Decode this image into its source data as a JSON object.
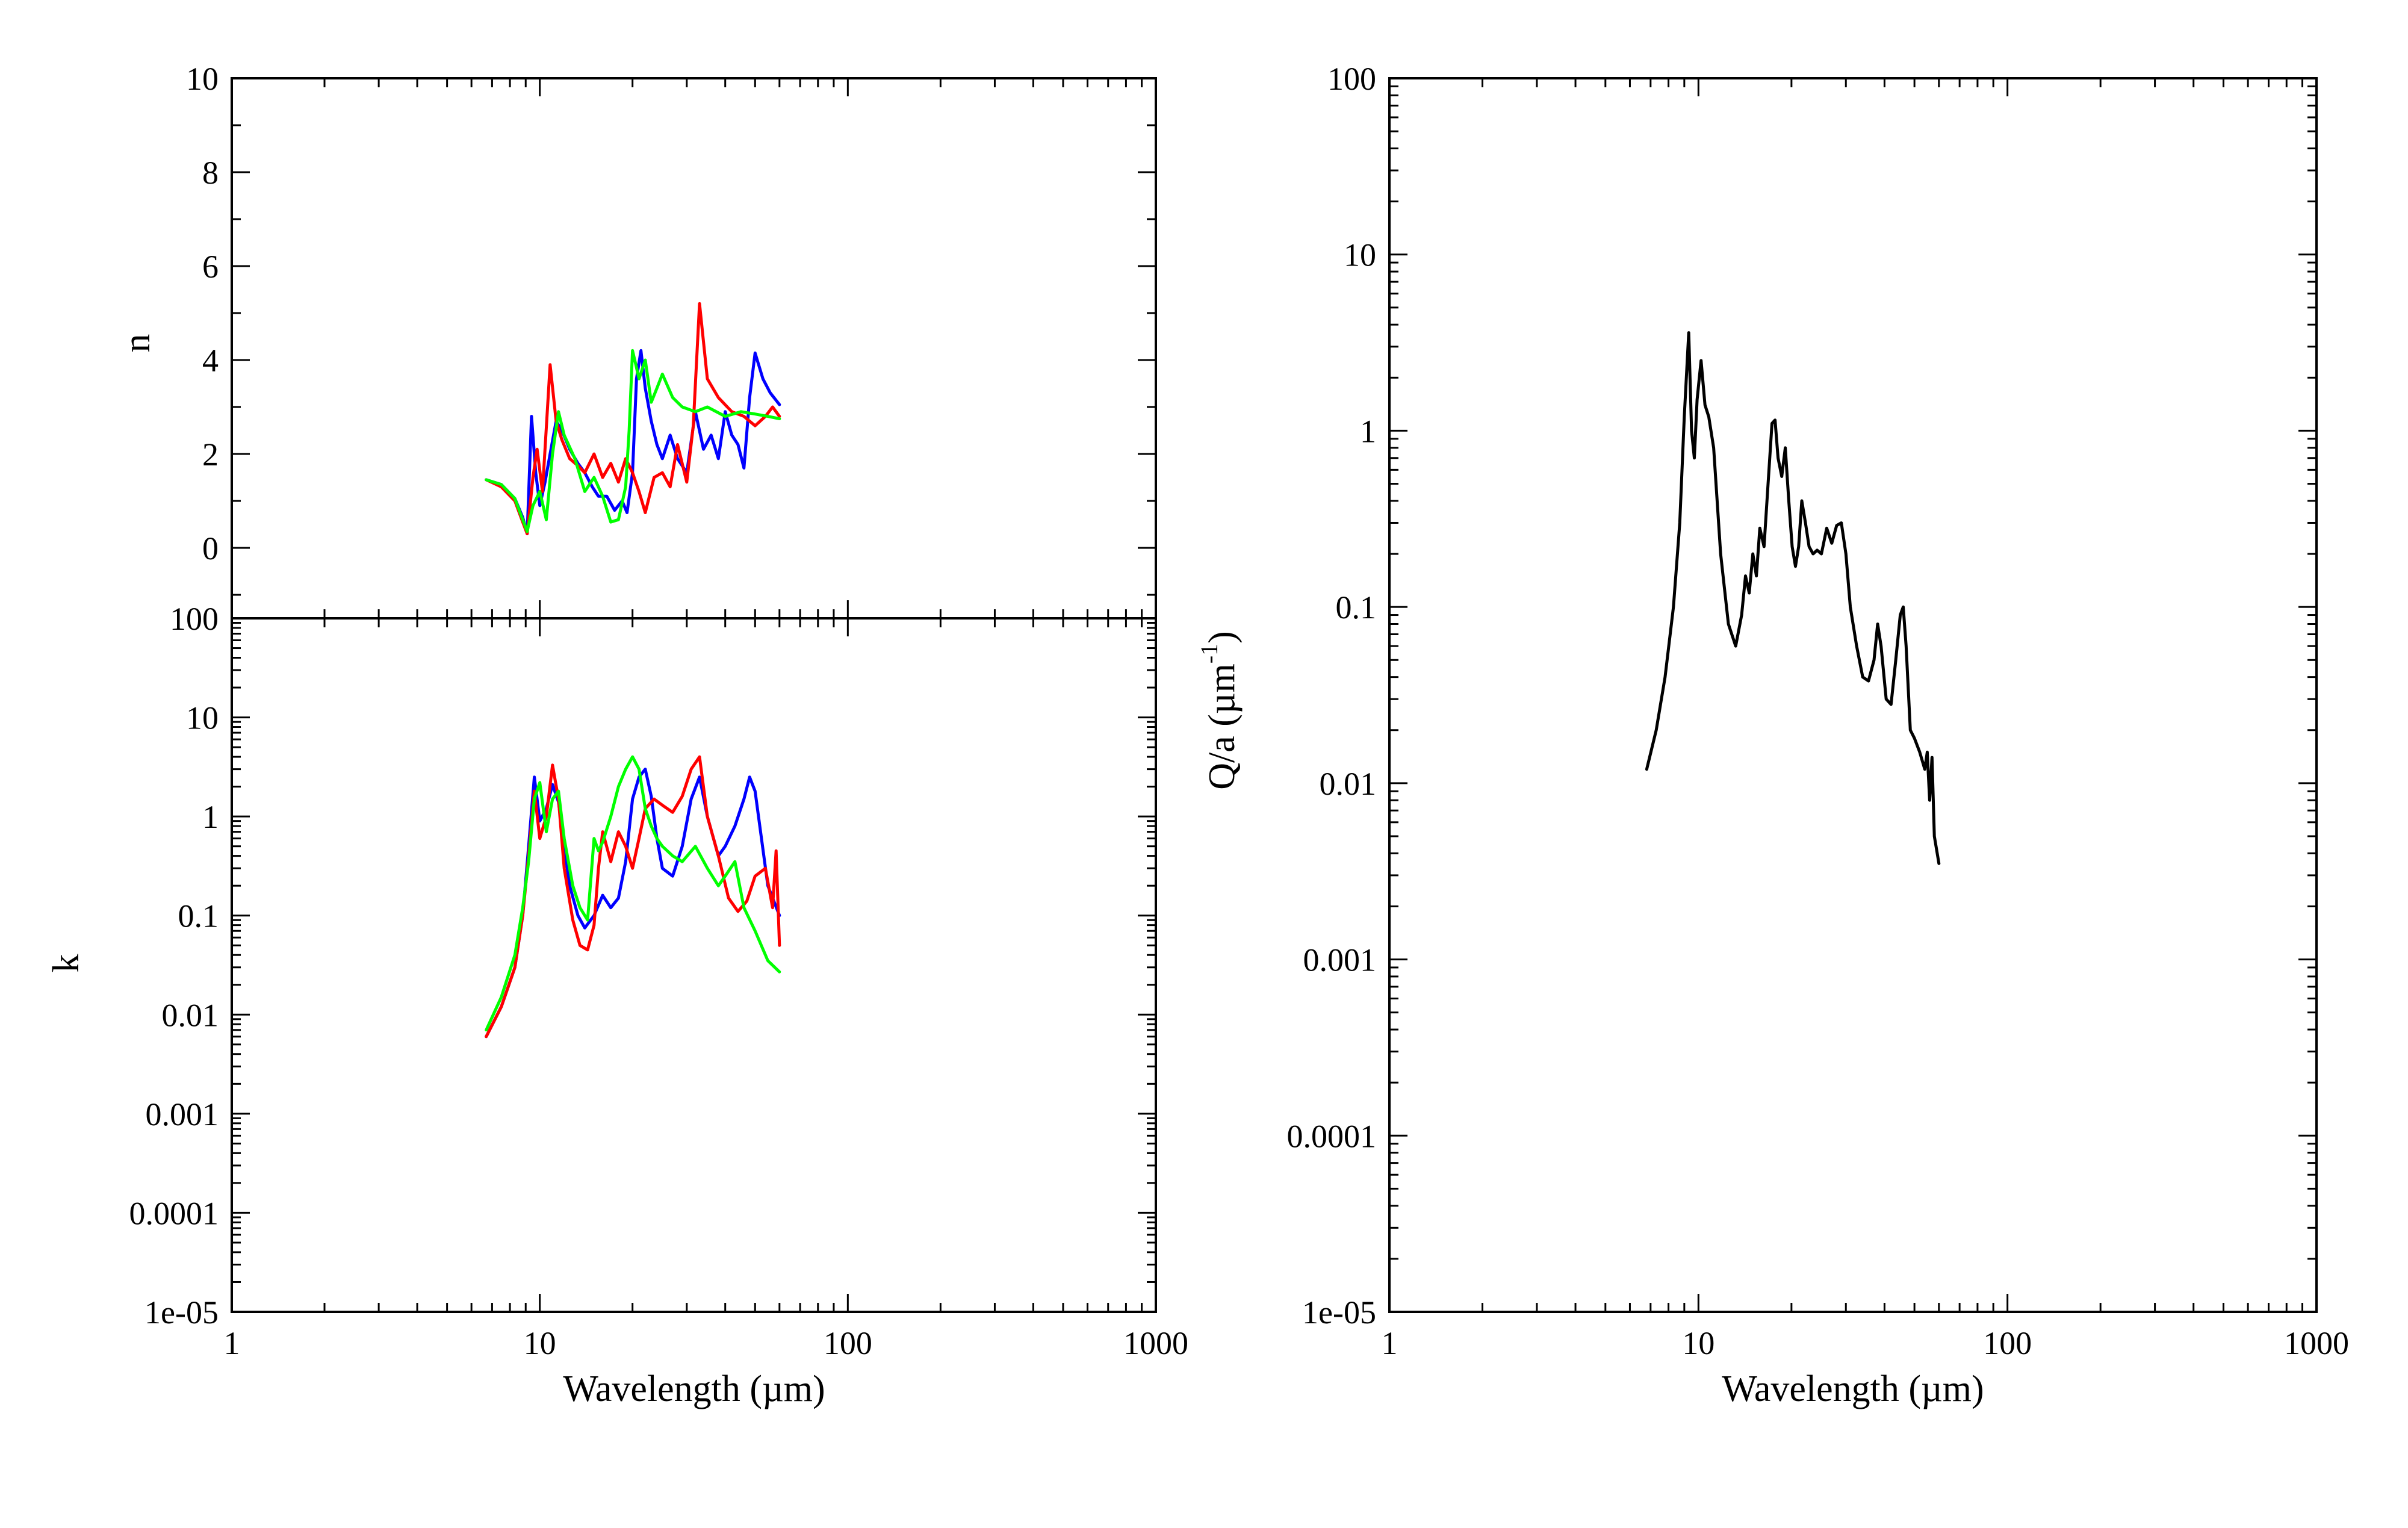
{
  "chart_data": [
    {
      "id": "n",
      "type": "line",
      "xscale": "log",
      "yscale": "linear",
      "xlim": [
        1,
        1000
      ],
      "ylim": [
        -1.5,
        10
      ],
      "ylabel": "n",
      "xlabel": "",
      "ytick_labels": [
        {
          "v": 0,
          "label": "0"
        },
        {
          "v": 2,
          "label": "2"
        },
        {
          "v": 4,
          "label": "4"
        },
        {
          "v": 6,
          "label": "6"
        },
        {
          "v": 8,
          "label": "8"
        },
        {
          "v": 10,
          "label": "10"
        }
      ],
      "xtick_labels": [],
      "series": [
        {
          "color": "#0000ff",
          "x": [
            6.7,
            7.5,
            8.3,
            8.8,
            9.1,
            9.4,
            9.7,
            10.0,
            10.4,
            10.8,
            11.3,
            11.8,
            12.5,
            13.3,
            14.0,
            14.8,
            15.5,
            16.5,
            17.5,
            18.5,
            19.2,
            20.0,
            20.6,
            21.3,
            22.0,
            23.0,
            24.0,
            25.0,
            26.5,
            28.0,
            30.0,
            32.0,
            34.0,
            36.0,
            38.0,
            40.0,
            42.0,
            44.0,
            46.0,
            48.0,
            50.0,
            53.0,
            56.0,
            60.0
          ],
          "y": [
            1.45,
            1.35,
            1.05,
            0.65,
            0.3,
            2.8,
            1.6,
            0.9,
            1.4,
            2.0,
            2.7,
            2.5,
            2.1,
            1.8,
            1.6,
            1.3,
            1.1,
            1.1,
            0.8,
            1.0,
            0.75,
            1.6,
            3.6,
            4.2,
            3.4,
            2.7,
            2.2,
            1.9,
            2.4,
            1.9,
            1.6,
            2.9,
            2.1,
            2.4,
            1.9,
            2.9,
            2.4,
            2.2,
            1.7,
            3.2,
            4.15,
            3.6,
            3.3,
            3.05
          ]
        },
        {
          "color": "#ff0000",
          "x": [
            6.7,
            7.5,
            8.3,
            8.8,
            9.1,
            9.5,
            9.8,
            10.2,
            10.8,
            11.3,
            11.8,
            12.5,
            13.3,
            14.0,
            15.0,
            16.0,
            17.0,
            18.0,
            19.0,
            20.0,
            21.0,
            22.0,
            23.5,
            25.0,
            26.5,
            28.0,
            30.0,
            31.5,
            33.0,
            35.0,
            38.0,
            42.0,
            46.0,
            50.0,
            54.0,
            57.0,
            60.0
          ],
          "y": [
            1.45,
            1.3,
            1.0,
            0.55,
            0.3,
            1.5,
            2.1,
            1.2,
            3.9,
            2.7,
            2.3,
            1.9,
            1.75,
            1.6,
            2.0,
            1.5,
            1.8,
            1.4,
            1.9,
            1.6,
            1.2,
            0.75,
            1.5,
            1.6,
            1.3,
            2.2,
            1.4,
            2.6,
            5.2,
            3.6,
            3.2,
            2.9,
            2.8,
            2.6,
            2.8,
            3.0,
            2.8
          ]
        },
        {
          "color": "#00ff00",
          "x": [
            6.7,
            7.5,
            8.3,
            8.8,
            9.1,
            9.5,
            10.0,
            10.5,
            11.0,
            11.5,
            12.0,
            13.0,
            14.0,
            15.0,
            16.0,
            17.0,
            18.0,
            19.0,
            19.5,
            20.0,
            20.5,
            21.0,
            22.0,
            23.0,
            24.0,
            25.0,
            27.0,
            29.0,
            32.0,
            35.0,
            40.0,
            45.0,
            50.0,
            55.0,
            60.0
          ],
          "y": [
            1.45,
            1.35,
            1.05,
            0.6,
            0.35,
            0.9,
            1.2,
            0.6,
            2.0,
            2.9,
            2.4,
            1.9,
            1.2,
            1.5,
            1.1,
            0.55,
            0.6,
            1.3,
            2.5,
            4.2,
            3.9,
            3.6,
            4.0,
            3.1,
            3.4,
            3.7,
            3.2,
            3.0,
            2.9,
            3.0,
            2.8,
            2.9,
            2.85,
            2.8,
            2.75
          ]
        }
      ]
    },
    {
      "id": "k",
      "type": "line",
      "xscale": "log",
      "yscale": "log",
      "xlim": [
        1,
        1000
      ],
      "ylim": [
        1e-05,
        100
      ],
      "ylabel": "k",
      "xlabel": "Wavelength (µm)",
      "ytick_labels": [
        {
          "v": 1e-05,
          "label": "1e-05"
        },
        {
          "v": 0.0001,
          "label": "0.0001"
        },
        {
          "v": 0.001,
          "label": "0.001"
        },
        {
          "v": 0.01,
          "label": "0.01"
        },
        {
          "v": 0.1,
          "label": "0.1"
        },
        {
          "v": 1,
          "label": "1"
        },
        {
          "v": 10,
          "label": "10"
        },
        {
          "v": 100,
          "label": "100"
        }
      ],
      "xtick_labels": [
        {
          "v": 1,
          "label": "1"
        },
        {
          "v": 10,
          "label": "10"
        },
        {
          "v": 100,
          "label": "100"
        },
        {
          "v": 1000,
          "label": "1000"
        }
      ],
      "series": [
        {
          "color": "#0000ff",
          "x": [
            6.7,
            7.5,
            8.3,
            8.8,
            9.2,
            9.6,
            10.0,
            10.5,
            11.0,
            11.5,
            12.0,
            12.5,
            13.3,
            14.0,
            15.0,
            16.0,
            17.0,
            18.0,
            19.0,
            20.0,
            21.0,
            22.0,
            23.0,
            24.0,
            25.0,
            27.0,
            29.0,
            31.0,
            33.0,
            35.0,
            38.0,
            40.0,
            43.0,
            46.0,
            48.0,
            50.0,
            55.0,
            60.0
          ],
          "y": [
            0.006,
            0.012,
            0.03,
            0.1,
            0.5,
            2.5,
            0.9,
            1.2,
            2.1,
            1.4,
            0.5,
            0.2,
            0.1,
            0.075,
            0.1,
            0.16,
            0.12,
            0.15,
            0.35,
            1.5,
            2.5,
            3.0,
            1.6,
            0.6,
            0.3,
            0.25,
            0.5,
            1.5,
            2.5,
            1.0,
            0.4,
            0.5,
            0.8,
            1.5,
            2.5,
            1.8,
            0.2,
            0.1
          ]
        },
        {
          "color": "#ff0000",
          "x": [
            6.7,
            7.5,
            8.3,
            8.8,
            9.2,
            9.6,
            10.0,
            10.5,
            11.0,
            11.5,
            12.0,
            12.8,
            13.5,
            14.3,
            15.0,
            15.5,
            16.0,
            17.0,
            18.0,
            19.0,
            20.0,
            21.0,
            22.0,
            23.5,
            25.0,
            27.0,
            29.0,
            31.0,
            33.0,
            35.0,
            38.0,
            41.0,
            44.0,
            47.0,
            50.0,
            54.0,
            57.0,
            58.5,
            60.0
          ],
          "y": [
            0.006,
            0.012,
            0.03,
            0.1,
            0.4,
            1.8,
            0.6,
            1.0,
            3.3,
            1.5,
            0.3,
            0.09,
            0.05,
            0.045,
            0.08,
            0.3,
            0.7,
            0.35,
            0.7,
            0.5,
            0.3,
            0.6,
            1.2,
            1.5,
            1.3,
            1.1,
            1.6,
            3.0,
            4.0,
            1.0,
            0.4,
            0.15,
            0.11,
            0.14,
            0.25,
            0.3,
            0.12,
            0.45,
            0.05
          ]
        },
        {
          "color": "#00ff00",
          "x": [
            6.7,
            7.5,
            8.3,
            8.8,
            9.2,
            9.6,
            10.0,
            10.5,
            11.0,
            11.5,
            12.0,
            12.8,
            13.5,
            14.3,
            15.0,
            15.5,
            16.0,
            17.0,
            18.0,
            19.0,
            20.0,
            21.0,
            22.0,
            23.0,
            24.0,
            25.0,
            27.0,
            29.0,
            32.0,
            35.0,
            38.0,
            40.0,
            43.0,
            46.0,
            50.0,
            55.0,
            60.0
          ],
          "y": [
            0.007,
            0.015,
            0.04,
            0.12,
            0.35,
            1.5,
            2.2,
            0.7,
            1.5,
            1.8,
            0.6,
            0.2,
            0.12,
            0.09,
            0.6,
            0.45,
            0.55,
            1.0,
            2.0,
            3.0,
            4.0,
            3.0,
            1.2,
            0.8,
            0.6,
            0.5,
            0.4,
            0.35,
            0.5,
            0.3,
            0.2,
            0.25,
            0.35,
            0.12,
            0.07,
            0.035,
            0.027
          ]
        }
      ]
    },
    {
      "id": "qa",
      "type": "line",
      "xscale": "log",
      "yscale": "log",
      "xlim": [
        1,
        1000
      ],
      "ylim": [
        1e-05,
        100
      ],
      "ylabel_main": "Q/a (",
      "ylabel_unit": "µm",
      "ylabel_sup": "-1",
      "ylabel_close": ")",
      "xlabel": "Wavelength (µm)",
      "ytick_labels": [
        {
          "v": 1e-05,
          "label": "1e-05"
        },
        {
          "v": 0.0001,
          "label": "0.0001"
        },
        {
          "v": 0.001,
          "label": "0.001"
        },
        {
          "v": 0.01,
          "label": "0.01"
        },
        {
          "v": 0.1,
          "label": "0.1"
        },
        {
          "v": 1,
          "label": "1"
        },
        {
          "v": 10,
          "label": "10"
        },
        {
          "v": 100,
          "label": "100"
        }
      ],
      "xtick_labels": [
        {
          "v": 1,
          "label": "1"
        },
        {
          "v": 10,
          "label": "10"
        },
        {
          "v": 100,
          "label": "100"
        },
        {
          "v": 1000,
          "label": "1000"
        }
      ],
      "series": [
        {
          "color": "#000000",
          "x": [
            6.8,
            7.3,
            7.8,
            8.3,
            8.7,
            9.0,
            9.3,
            9.5,
            9.7,
            9.9,
            10.2,
            10.5,
            10.8,
            11.2,
            11.8,
            12.5,
            13.2,
            13.8,
            14.2,
            14.6,
            15.0,
            15.4,
            15.8,
            16.3,
            16.8,
            17.3,
            17.7,
            18.1,
            18.6,
            19.1,
            19.6,
            20.1,
            20.6,
            21.1,
            21.6,
            22.2,
            22.8,
            23.5,
            24.2,
            25.0,
            26.0,
            27.0,
            28.0,
            29.0,
            30.0,
            31.0,
            32.5,
            34.0,
            35.5,
            37.0,
            38.0,
            39.0,
            40.5,
            42.0,
            43.5,
            45.0,
            46.0,
            47.0,
            48.5,
            50.0,
            52.0,
            54.0,
            55.0,
            56.0,
            57.0,
            58.0,
            60.0
          ],
          "y": [
            0.012,
            0.02,
            0.04,
            0.1,
            0.3,
            1.2,
            3.6,
            1.0,
            0.7,
            1.5,
            2.5,
            1.4,
            1.2,
            0.8,
            0.2,
            0.08,
            0.06,
            0.09,
            0.15,
            0.12,
            0.2,
            0.15,
            0.28,
            0.22,
            0.5,
            1.1,
            1.15,
            0.7,
            0.55,
            0.8,
            0.4,
            0.22,
            0.17,
            0.22,
            0.4,
            0.3,
            0.22,
            0.2,
            0.21,
            0.2,
            0.28,
            0.23,
            0.29,
            0.3,
            0.2,
            0.1,
            0.06,
            0.04,
            0.038,
            0.05,
            0.08,
            0.06,
            0.03,
            0.028,
            0.05,
            0.09,
            0.1,
            0.06,
            0.02,
            0.018,
            0.015,
            0.012,
            0.015,
            0.008,
            0.014,
            0.005,
            0.0035
          ]
        }
      ]
    }
  ]
}
